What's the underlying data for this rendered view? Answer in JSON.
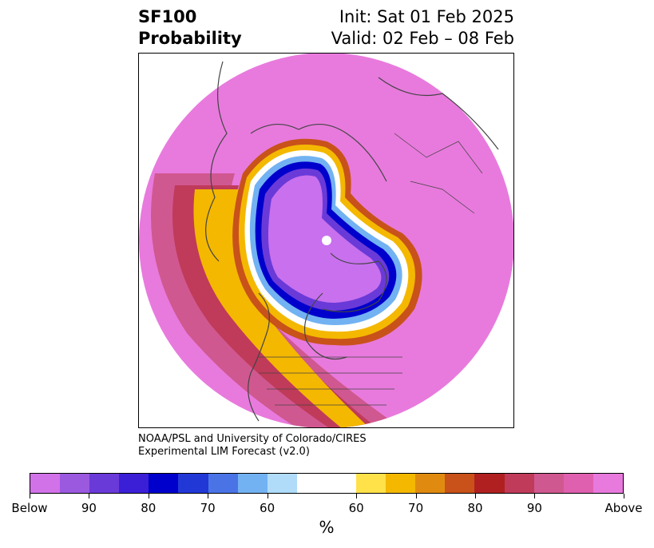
{
  "title": {
    "left_line1": "SF100",
    "left_line2": "Probability",
    "right_line1": "Init: Sat 01 Feb 2025",
    "right_line2": "Valid: 02 Feb – 08 Feb"
  },
  "credit": {
    "line1": "NOAA/PSL and University of Colorado/CIRES",
    "line2": "Experimental LIM Forecast (v2.0)"
  },
  "colorbar": {
    "unit": "%",
    "colors": [
      "#d272e8",
      "#9b59e0",
      "#6a3ad8",
      "#3a1fd6",
      "#0000cc",
      "#2238d6",
      "#4a74e6",
      "#72b2f2",
      "#b0dcfa",
      "#ffffff",
      "#ffe14a",
      "#f4b800",
      "#e08b10",
      "#c8521a",
      "#b02020",
      "#c03a5a",
      "#d05890",
      "#e060b0",
      "#e87add"
    ],
    "labels": [
      "Below",
      "90",
      "80",
      "70",
      "60",
      "60",
      "70",
      "80",
      "90",
      "Above"
    ]
  },
  "map_colors": {
    "background": "#e87add",
    "below_core": "#c870ee",
    "coast": "#444444"
  }
}
